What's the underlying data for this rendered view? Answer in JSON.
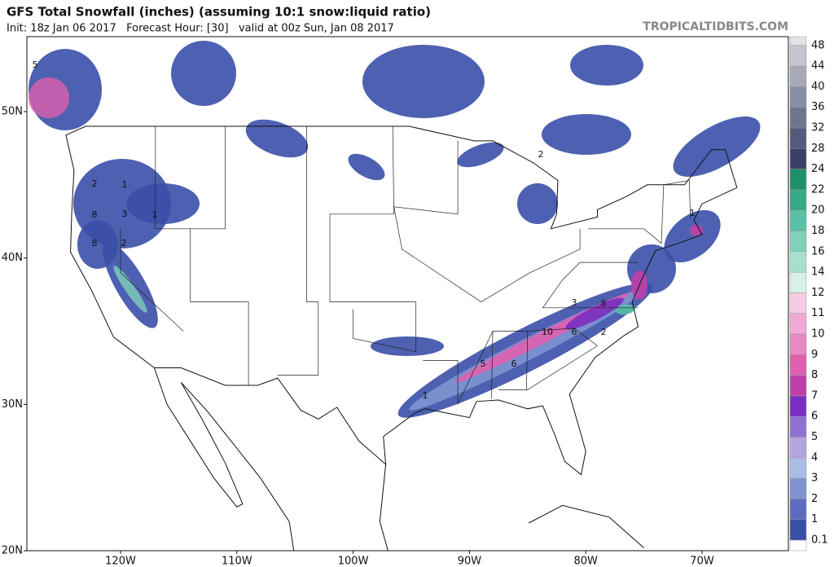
{
  "header": {
    "title": "GFS Total Snowfall (inches) (assuming 10:1 snow:liquid ratio)",
    "subtitle": "Init: 18z Jan 06 2017   Forecast Hour: [30]   valid at 00z Sun, Jan 08 2017",
    "brand": "TROPICALTIDBITS.COM"
  },
  "map": {
    "lat_labels": [
      "50N",
      "40N",
      "30N",
      "20N"
    ],
    "lon_labels": [
      "120W",
      "110W",
      "100W",
      "90W",
      "80W",
      "70W"
    ],
    "contour_labels": [
      2,
      1,
      8,
      3,
      1,
      8,
      2,
      5,
      6,
      1,
      3,
      8,
      10,
      6,
      2,
      2,
      1,
      5
    ]
  },
  "colorbar": {
    "levels": [
      0.1,
      1,
      2,
      3,
      4,
      5,
      6,
      7,
      8,
      9,
      10,
      11,
      12,
      14,
      16,
      18,
      20,
      22,
      24,
      28,
      32,
      36,
      40,
      44,
      48
    ],
    "colors": [
      "#3b4fa8",
      "#5a6dc0",
      "#7f95d2",
      "#a9bce4",
      "#b4a4e0",
      "#9070d0",
      "#7a2fc0",
      "#c040a8",
      "#e060b0",
      "#e888c4",
      "#f0a8d4",
      "#f5cce4",
      "#d8f0e8",
      "#a8e0d0",
      "#80d0bc",
      "#58c0a4",
      "#38a888",
      "#1f8f6c",
      "#3a3f68",
      "#555a7c",
      "#6f7490",
      "#8a8ea4",
      "#a6a9b8",
      "#c4c6cf",
      "#e2e3e8"
    ]
  }
}
